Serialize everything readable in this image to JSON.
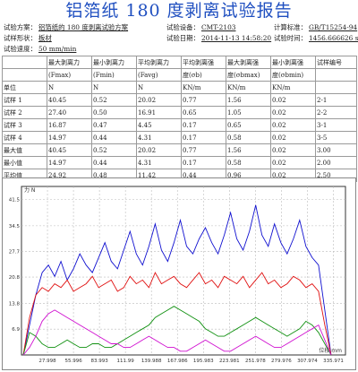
{
  "title": "铝箔纸 180 度剥离试验报告",
  "meta": {
    "scheme_label": "试验方案：",
    "scheme_value": "铝箔纸的 180 度剥离试验方案",
    "device_label": "试验设备：",
    "device_value": "CMT-2103",
    "standard_label": "计算标准：",
    "standard_value": "GB/T15254-94",
    "shape_label": "试样形状：",
    "shape_value": "板材",
    "date_label": "试验日期：",
    "date_value": "2014-11-13 14:58:20",
    "time_label": "试验时间：",
    "time_value": "1456.666626 s",
    "speed_label": "试验速度：",
    "speed_value": "50 mm/min"
  },
  "table": {
    "header1": [
      "",
      "最大剥离力",
      "最小剥离力",
      "平均剥离力",
      "平均剥离强",
      "最大剥离强",
      "最小剥离强",
      "试样编号"
    ],
    "header2": [
      "",
      "(Fmax)",
      "(Fmin)",
      "(Favg)",
      "度(σb)",
      "度(σbmax)",
      "度(σbmin)",
      ""
    ],
    "rows": [
      [
        "单位",
        "N",
        "N",
        "N",
        "KN/m",
        "KN/m",
        "KN/m",
        ""
      ],
      [
        "试样 1",
        "40.45",
        "0.52",
        "20.02",
        "0.77",
        "1.56",
        "0.02",
        "2-1"
      ],
      [
        "试样 2",
        "27.40",
        "0.50",
        "16.91",
        "0.65",
        "1.05",
        "0.02",
        "2-2"
      ],
      [
        "试样 3",
        "16.87",
        "0.47",
        "4.45",
        "0.17",
        "0.65",
        "0.02",
        "3-1"
      ],
      [
        "试样 4",
        "14.97",
        "0.44",
        "4.31",
        "0.17",
        "0.58",
        "0.02",
        "3-5"
      ],
      [
        "最大值",
        "40.45",
        "0.52",
        "20.02",
        "0.77",
        "1.56",
        "0.02",
        "3.00"
      ],
      [
        "最小值",
        "14.97",
        "0.44",
        "4.31",
        "0.17",
        "0.58",
        "0.02",
        "2.00"
      ],
      [
        "平均值",
        "24.92",
        "0.48",
        "11.42",
        "0.44",
        "0.96",
        "0.02",
        "2.50"
      ]
    ]
  },
  "chart_data": {
    "type": "line",
    "ylabel": "力 N",
    "xlabel": "位移 mm",
    "yticks": [
      "41.5",
      "34.5",
      "27.7",
      "20.8",
      "13.8",
      "6.9"
    ],
    "xticks": [
      "27.998",
      "55.996",
      "83.993",
      "111.99",
      "139.988",
      "167.986",
      "195.983",
      "223.981",
      "251.978",
      "279.976",
      "307.974",
      "335.971"
    ],
    "xlim": [
      0,
      349
    ],
    "ylim": [
      0,
      45
    ],
    "series": [
      {
        "color": "#1010d0",
        "values": [
          0,
          8,
          16,
          22,
          24,
          21,
          25,
          20,
          23,
          27,
          24,
          22,
          26,
          30,
          25,
          23,
          28,
          33,
          27,
          24,
          29,
          35,
          28,
          25,
          30,
          36,
          29,
          27,
          31,
          34,
          30,
          27,
          32,
          38,
          31,
          28,
          33,
          40,
          32,
          29,
          35,
          30,
          27,
          31,
          36,
          29,
          26,
          24,
          12,
          0
        ]
      },
      {
        "color": "#e01010",
        "values": [
          0,
          10,
          16,
          18,
          17,
          19,
          18,
          20,
          17,
          18,
          19,
          21,
          18,
          19,
          20,
          17,
          18,
          21,
          19,
          20,
          18,
          22,
          19,
          20,
          21,
          19,
          18,
          20,
          22,
          19,
          20,
          18,
          21,
          20,
          19,
          21,
          18,
          20,
          22,
          19,
          20,
          18,
          19,
          21,
          20,
          18,
          19,
          17,
          8,
          0
        ]
      },
      {
        "color": "#109010",
        "values": [
          0,
          6,
          5,
          3,
          2,
          2,
          3,
          4,
          3,
          2,
          2,
          3,
          3,
          2,
          2,
          3,
          4,
          5,
          6,
          7,
          8,
          10,
          11,
          12,
          13,
          12,
          11,
          10,
          9,
          7,
          6,
          5,
          5,
          6,
          7,
          8,
          9,
          10,
          9,
          8,
          7,
          6,
          5,
          6,
          7,
          9,
          8,
          6,
          3,
          0
        ]
      },
      {
        "color": "#d010d0",
        "values": [
          0,
          2,
          5,
          9,
          11,
          12,
          11,
          10,
          9,
          8,
          7,
          6,
          5,
          4,
          3,
          3,
          2,
          2,
          3,
          4,
          5,
          4,
          3,
          2,
          2,
          1,
          1,
          2,
          3,
          4,
          3,
          2,
          1,
          1,
          2,
          3,
          4,
          5,
          4,
          3,
          2,
          2,
          3,
          4,
          5,
          6,
          7,
          8,
          4,
          0
        ]
      }
    ]
  }
}
